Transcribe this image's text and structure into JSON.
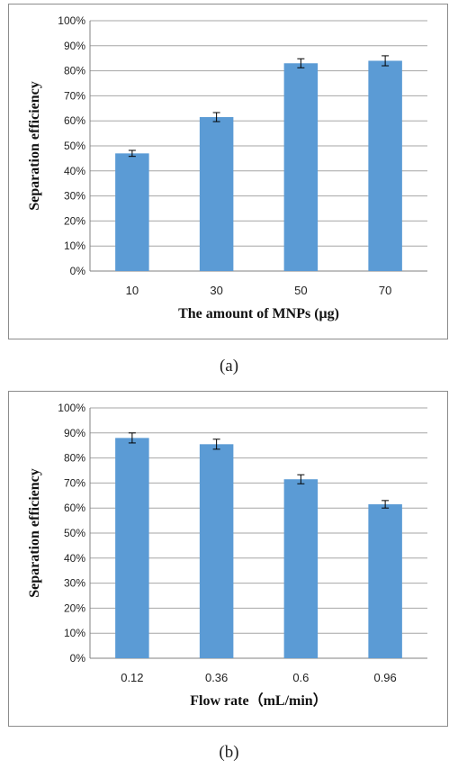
{
  "chart_data": [
    {
      "type": "bar",
      "categories": [
        "10",
        "30",
        "50",
        "70"
      ],
      "values": [
        47,
        61.5,
        83,
        84
      ],
      "errors": [
        1.2,
        1.8,
        1.8,
        2.0
      ],
      "yticks": [
        "0%",
        "10%",
        "20%",
        "30%",
        "40%",
        "50%",
        "60%",
        "70%",
        "80%",
        "90%",
        "100%"
      ],
      "ylim": [
        0,
        100
      ],
      "xlabel": "The amount of MNPs (μg)",
      "ylabel": "Separation efficiency",
      "grid": true,
      "bar_color": "#5b9bd5",
      "caption": "(a)"
    },
    {
      "type": "bar",
      "categories": [
        "0.12",
        "0.36",
        "0.6",
        "0.96"
      ],
      "values": [
        88,
        85.5,
        71.5,
        61.5
      ],
      "errors": [
        2.0,
        2.0,
        1.8,
        1.5
      ],
      "yticks": [
        "0%",
        "10%",
        "20%",
        "30%",
        "40%",
        "50%",
        "60%",
        "70%",
        "80%",
        "90%",
        "100%"
      ],
      "ylim": [
        0,
        100
      ],
      "xlabel": "Flow rate（mL/min）",
      "ylabel": "Separation efficiency",
      "grid": true,
      "bar_color": "#5b9bd5",
      "caption": "(b)"
    }
  ]
}
